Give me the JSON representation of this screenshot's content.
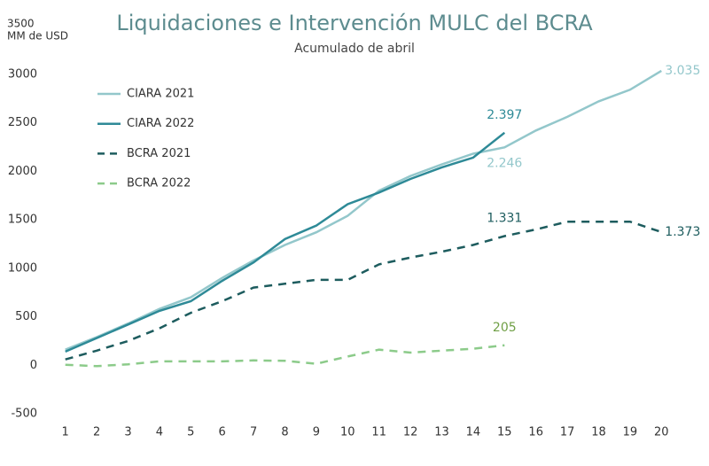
{
  "chart_data": {
    "type": "line",
    "title": "Liquidaciones e Intervención MULC del BCRA",
    "subtitle": "Acumulado de abril",
    "y_label": "MM de USD",
    "x": [
      1,
      2,
      3,
      4,
      5,
      6,
      7,
      8,
      9,
      10,
      11,
      12,
      13,
      14,
      15,
      16,
      17,
      18,
      19,
      20
    ],
    "xlim": [
      0.5,
      20.5
    ],
    "xticks": [
      1,
      2,
      3,
      4,
      5,
      6,
      7,
      8,
      9,
      10,
      11,
      12,
      13,
      14,
      15,
      16,
      17,
      18,
      19,
      20
    ],
    "ylim": [
      -500,
      3500
    ],
    "yticks": [
      -500,
      0,
      500,
      1000,
      1500,
      2000,
      2500,
      3000,
      3500
    ],
    "grid": false,
    "legend": "upper left",
    "series": [
      {
        "name": "CIARA 2021",
        "color": "#93c7cb",
        "style": "solid",
        "values": [
          160,
          290,
          430,
          580,
          700,
          900,
          1080,
          1240,
          1370,
          1540,
          1800,
          1950,
          2070,
          2180,
          2246,
          2420,
          2560,
          2720,
          2840,
          3035
        ],
        "value_labels": [
          null,
          null,
          null,
          null,
          null,
          null,
          null,
          null,
          null,
          null,
          null,
          null,
          null,
          null,
          "2.246",
          null,
          null,
          null,
          null,
          "3.035"
        ]
      },
      {
        "name": "CIARA 2022",
        "color": "#2e8a97",
        "style": "solid",
        "values": [
          140,
          280,
          420,
          560,
          660,
          870,
          1060,
          1300,
          1440,
          1660,
          1780,
          1920,
          2040,
          2140,
          2397,
          null,
          null,
          null,
          null,
          null
        ],
        "value_labels": [
          null,
          null,
          null,
          null,
          null,
          null,
          null,
          null,
          null,
          null,
          null,
          null,
          null,
          null,
          "2.397",
          null,
          null,
          null,
          null,
          null
        ]
      },
      {
        "name": "BCRA 2021",
        "color": "#1d5c5e",
        "style": "dashed",
        "values": [
          60,
          150,
          250,
          380,
          540,
          660,
          800,
          840,
          880,
          880,
          1040,
          1110,
          1170,
          1240,
          1331,
          1400,
          1480,
          1480,
          1480,
          1373
        ],
        "value_labels": [
          null,
          null,
          null,
          null,
          null,
          null,
          null,
          null,
          null,
          null,
          null,
          null,
          null,
          null,
          "1.331",
          null,
          null,
          null,
          null,
          "1.373"
        ]
      },
      {
        "name": "BCRA 2022",
        "color": "#8ccb8a",
        "style": "dashed",
        "values": [
          5,
          -10,
          10,
          40,
          40,
          40,
          50,
          45,
          15,
          90,
          160,
          130,
          150,
          170,
          205,
          null,
          null,
          null,
          null,
          null
        ],
        "value_labels": [
          null,
          null,
          null,
          null,
          null,
          null,
          null,
          null,
          null,
          null,
          null,
          null,
          null,
          null,
          "205",
          null,
          null,
          null,
          null,
          null
        ]
      }
    ]
  }
}
